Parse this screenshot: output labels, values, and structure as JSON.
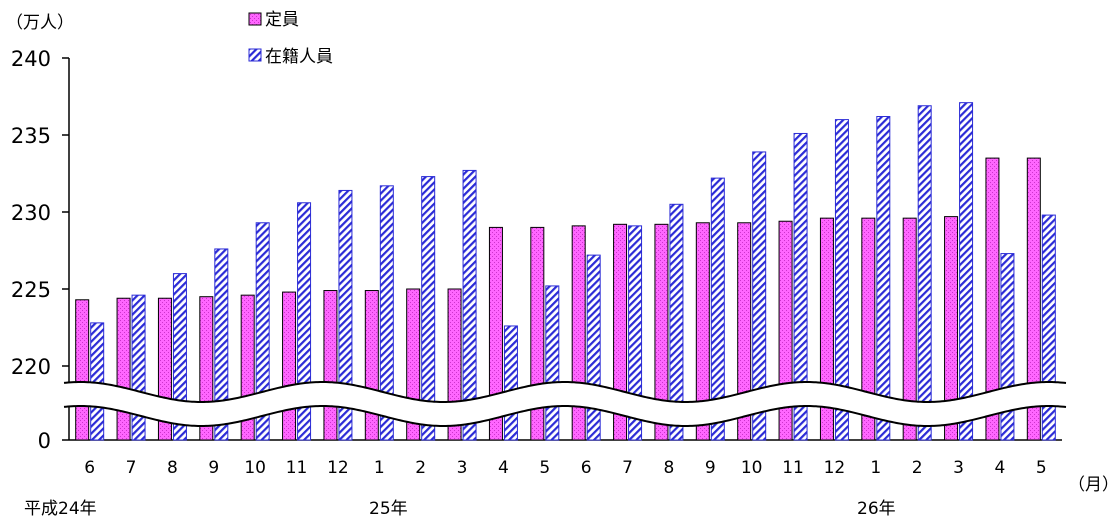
{
  "chart_data": {
    "type": "bar",
    "unit_label": "（万人）",
    "x_unit_label": "（月）",
    "categories": [
      "6",
      "7",
      "8",
      "9",
      "10",
      "11",
      "12",
      "1",
      "2",
      "3",
      "4",
      "5",
      "6",
      "7",
      "8",
      "9",
      "10",
      "11",
      "12",
      "1",
      "2",
      "3",
      "4",
      "5"
    ],
    "year_labels": [
      {
        "label": "平成24年",
        "at_index": 0
      },
      {
        "label": "25年",
        "at_index": 7
      },
      {
        "label": "26年",
        "at_index": 19
      }
    ],
    "y_ticks": [
      "0",
      "220",
      "225",
      "230",
      "235",
      "240"
    ],
    "ylim": [
      220,
      240
    ],
    "axis_break": "wavy break between 0 and 220",
    "series": [
      {
        "name": "定員",
        "color": "#ff66ff",
        "values": [
          224.3,
          224.4,
          224.4,
          224.5,
          224.6,
          224.8,
          224.9,
          224.9,
          225.0,
          225.0,
          229.0,
          229.0,
          229.1,
          229.2,
          229.2,
          229.3,
          229.3,
          229.4,
          229.6,
          229.6,
          229.6,
          229.7,
          233.5,
          233.5
        ]
      },
      {
        "name": "在籍人員",
        "color": "#3333cc",
        "values": [
          222.8,
          224.6,
          226.0,
          227.6,
          229.3,
          230.6,
          231.4,
          231.7,
          232.3,
          232.7,
          222.6,
          225.2,
          227.2,
          229.1,
          230.5,
          232.2,
          233.9,
          235.1,
          236.0,
          236.2,
          236.9,
          237.1,
          227.3,
          229.8
        ]
      }
    ],
    "legend": "top-center",
    "grid": false
  }
}
